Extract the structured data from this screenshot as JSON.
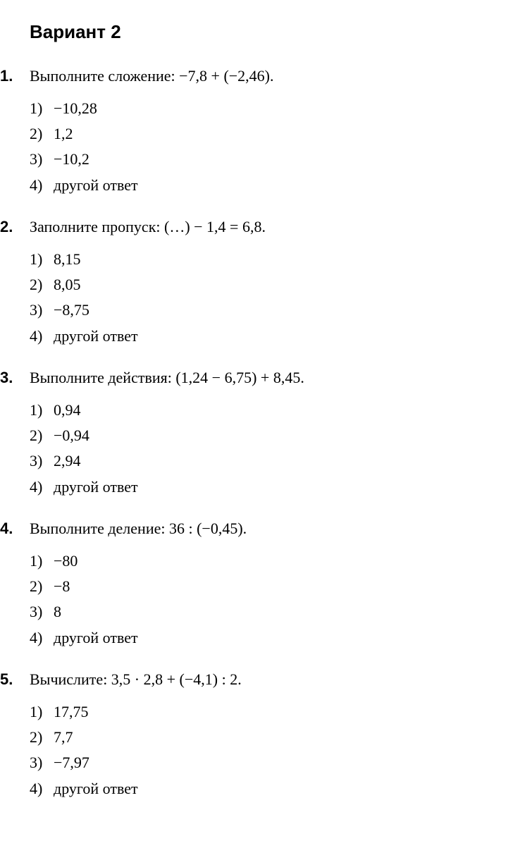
{
  "document": {
    "title": "Вариант 2",
    "background_color": "#ffffff",
    "text_color": "#000000",
    "title_fontsize": 26,
    "body_fontsize": 22,
    "questions": [
      {
        "number": "1.",
        "prompt": "Выполните сложение:  −7,8 + (−2,46).",
        "options": [
          {
            "n": "1)",
            "t": "−10,28"
          },
          {
            "n": "2)",
            "t": "1,2"
          },
          {
            "n": "3)",
            "t": "−10,2"
          },
          {
            "n": "4)",
            "t": "другой ответ"
          }
        ]
      },
      {
        "number": "2.",
        "prompt": "Заполните пропуск:  (…) − 1,4 = 6,8.",
        "options": [
          {
            "n": "1)",
            "t": "8,15"
          },
          {
            "n": "2)",
            "t": "8,05"
          },
          {
            "n": "3)",
            "t": "−8,75"
          },
          {
            "n": "4)",
            "t": "другой ответ"
          }
        ]
      },
      {
        "number": "3.",
        "prompt": "Выполните действия:  (1,24 − 6,75) + 8,45.",
        "options": [
          {
            "n": "1)",
            "t": "0,94"
          },
          {
            "n": "2)",
            "t": "−0,94"
          },
          {
            "n": "3)",
            "t": "2,94"
          },
          {
            "n": "4)",
            "t": "другой ответ"
          }
        ]
      },
      {
        "number": "4.",
        "prompt": "Выполните деление:  36 : (−0,45).",
        "options": [
          {
            "n": "1)",
            "t": "−80"
          },
          {
            "n": "2)",
            "t": "−8"
          },
          {
            "n": "3)",
            "t": "8"
          },
          {
            "n": "4)",
            "t": "другой ответ"
          }
        ]
      },
      {
        "number": "5.",
        "prompt": "Вычислите:  3,5 · 2,8 + (−4,1) : 2.",
        "options": [
          {
            "n": "1)",
            "t": "17,75"
          },
          {
            "n": "2)",
            "t": "7,7"
          },
          {
            "n": "3)",
            "t": "−7,97"
          },
          {
            "n": "4)",
            "t": "другой ответ"
          }
        ]
      }
    ]
  }
}
